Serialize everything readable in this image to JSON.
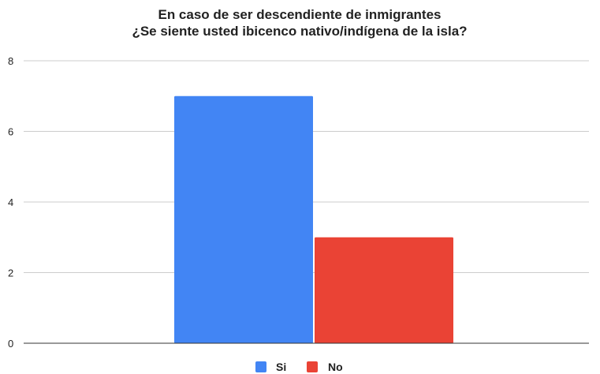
{
  "chart_data": {
    "type": "bar",
    "title_lines": [
      "En caso de ser descendiente de inmigrantes",
      "¿Se siente usted ibicenco nativo/indígena de la isla?"
    ],
    "xlabel": "",
    "ylabel": "",
    "ylim": [
      0,
      8
    ],
    "yticks": [
      0,
      2,
      4,
      6,
      8
    ],
    "grid": true,
    "legend_position": "bottom",
    "series": [
      {
        "name": "Si",
        "values": [
          7
        ],
        "color": "#4285f4"
      },
      {
        "name": "No",
        "values": [
          3
        ],
        "color": "#ea4335"
      }
    ]
  }
}
